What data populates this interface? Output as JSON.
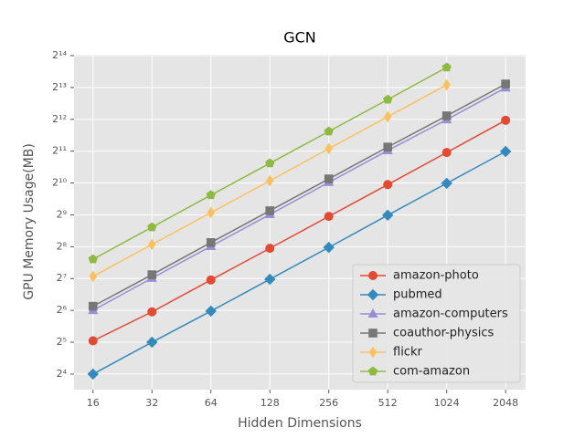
{
  "chart_data": {
    "type": "line",
    "title": "GCN",
    "xlabel": "Hidden Dimensions",
    "ylabel": "GPU Memory Usage(MB)",
    "x": [
      16,
      32,
      64,
      128,
      256,
      512,
      1024,
      2048
    ],
    "xlog": 2,
    "ylog": 2,
    "xlim": [
      12.8,
      2590
    ],
    "ylim": [
      11.4,
      16700
    ],
    "xticks": [
      16,
      32,
      64,
      128,
      256,
      512,
      1024,
      2048
    ],
    "yticks": [
      {
        "value": 16,
        "label": "2⁴"
      },
      {
        "value": 32,
        "label": "2⁵"
      },
      {
        "value": 64,
        "label": "2⁶"
      },
      {
        "value": 128,
        "label": "2⁷"
      },
      {
        "value": 256,
        "label": "2⁸"
      },
      {
        "value": 512,
        "label": "2⁹"
      },
      {
        "value": 1024,
        "label": "2¹⁰"
      },
      {
        "value": 2048,
        "label": "2¹¹"
      },
      {
        "value": 4096,
        "label": "2¹²"
      },
      {
        "value": 8192,
        "label": "2¹³"
      },
      {
        "value": 16384,
        "label": "2¹⁴"
      }
    ],
    "grid": true,
    "legend": "lower right",
    "series": [
      {
        "name": "amazon-photo",
        "color": "#E24A33",
        "marker": "circle",
        "values": [
          33,
          62,
          124,
          247,
          495,
          989,
          1990,
          4010
        ]
      },
      {
        "name": "pubmed",
        "color": "#348ABD",
        "marker": "diamond",
        "values": [
          16,
          32,
          63,
          126,
          252,
          508,
          1017,
          2034
        ]
      },
      {
        "name": "amazon-computers",
        "color": "#988ED5",
        "marker": "triangle",
        "values": [
          64,
          129,
          258,
          516,
          1038,
          2076,
          4066,
          8135
        ]
      },
      {
        "name": "coauthor-physics",
        "color": "#777777",
        "marker": "square",
        "values": [
          70,
          139,
          280,
          560,
          1120,
          2240,
          4420,
          8840
        ]
      },
      {
        "name": "flickr",
        "color": "#FBC15E",
        "marker": "thin-diamond",
        "values": [
          134,
          269,
          537,
          1075,
          2165,
          4330,
          8660,
          null
        ]
      },
      {
        "name": "com-amazon",
        "color": "#8EBA42",
        "marker": "pentagon",
        "values": [
          195,
          391,
          787,
          1574,
          3147,
          6294,
          12680,
          null
        ]
      }
    ]
  }
}
